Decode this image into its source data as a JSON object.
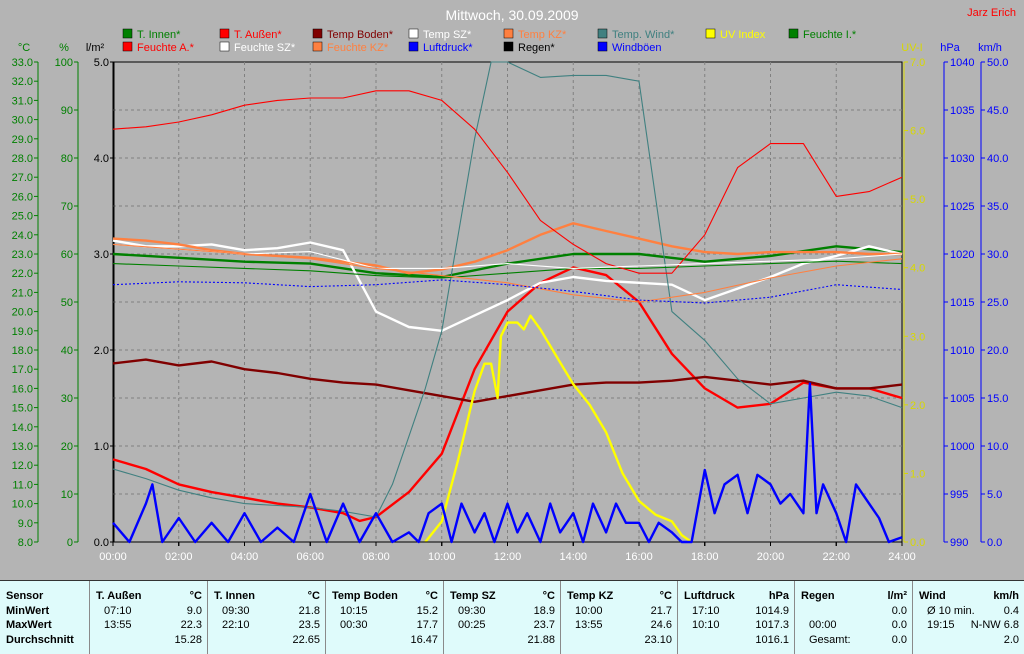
{
  "chart_data": {
    "type": "line",
    "title": "Mittwoch, 30.09.2009",
    "author": "Jarz Erich",
    "x_ticks": [
      "00:00",
      "02:00",
      "04:00",
      "06:00",
      "08:00",
      "10:00",
      "12:00",
      "14:00",
      "16:00",
      "18:00",
      "20:00",
      "22:00",
      "24:00"
    ],
    "grid": true,
    "axes": {
      "temp_c": {
        "unit": "°C",
        "range": [
          8.0,
          33.0
        ],
        "ticks": [
          "33.0",
          "32.0",
          "31.0",
          "30.0",
          "29.0",
          "28.0",
          "27.0",
          "26.0",
          "25.0",
          "24.0",
          "23.0",
          "22.0",
          "21.0",
          "20.0",
          "19.0",
          "18.0",
          "17.0",
          "16.0",
          "15.0",
          "14.0",
          "13.0",
          "12.0",
          "11.0",
          "10.0",
          "9.0",
          "8.0"
        ]
      },
      "humidity_pct": {
        "unit": "%",
        "range": [
          0,
          100
        ],
        "ticks": [
          "100",
          "90",
          "80",
          "70",
          "60",
          "50",
          "40",
          "30",
          "20",
          "10",
          "0"
        ]
      },
      "rain_lm2": {
        "unit": "l/m²",
        "range": [
          0.0,
          5.0
        ],
        "ticks": [
          "5.0",
          "4.0",
          "3.0",
          "2.0",
          "1.0",
          "0.0"
        ]
      },
      "uv_index": {
        "unit": "UV-I",
        "range": [
          0.0,
          7.0
        ],
        "ticks": [
          "7.0",
          "6.0",
          "5.0",
          "4.0",
          "3.0",
          "2.0",
          "1.0",
          "0.0"
        ]
      },
      "pressure_hpa": {
        "unit": "hPa",
        "range": [
          990,
          1040
        ],
        "ticks": [
          "1040",
          "1035",
          "1030",
          "1025",
          "1020",
          "1015",
          "1010",
          "1005",
          "1000",
          "995",
          "990"
        ]
      },
      "wind_kmh": {
        "unit": "km/h",
        "range": [
          0.0,
          50.0
        ],
        "ticks": [
          "50.0",
          "45.0",
          "40.0",
          "35.0",
          "30.0",
          "25.0",
          "20.0",
          "15.0",
          "10.0",
          "5.0",
          "0.0"
        ]
      }
    },
    "legend": [
      {
        "name": "T. Innen*",
        "color": "#008000"
      },
      {
        "name": "T. Außen*",
        "color": "#ff0000"
      },
      {
        "name": "Temp Boden*",
        "color": "#800000"
      },
      {
        "name": "Temp SZ*",
        "color": "#ffffff"
      },
      {
        "name": "Temp KZ*",
        "color": "#ff8040"
      },
      {
        "name": "Temp. Wind*",
        "color": "#408080"
      },
      {
        "name": "UV Index",
        "color": "#ffff00"
      },
      {
        "name": "Feuchte I.*",
        "color": "#008000"
      },
      {
        "name": "Feuchte A.*",
        "color": "#ff0000"
      },
      {
        "name": "Feuchte SZ*",
        "color": "#ffffff"
      },
      {
        "name": "Feuchte KZ*",
        "color": "#ff8040"
      },
      {
        "name": "Luftdruck*",
        "color": "#0000ff"
      },
      {
        "name": "Regen*",
        "color": "#000000"
      },
      {
        "name": "Windböen",
        "color": "#0000ff"
      }
    ],
    "series": [
      {
        "legend_index": 0,
        "axis": "temp_c",
        "style": "thick",
        "x": [
          0,
          2,
          4,
          6,
          8,
          10,
          12,
          14,
          16,
          18,
          20,
          22,
          24
        ],
        "y": [
          23.0,
          22.8,
          22.6,
          22.5,
          22.0,
          21.8,
          22.5,
          23.0,
          23.0,
          22.6,
          22.9,
          23.4,
          23.1
        ]
      },
      {
        "legend_index": 1,
        "axis": "temp_c",
        "style": "thick",
        "x": [
          0,
          1,
          2,
          3,
          4,
          5,
          6,
          7,
          7.5,
          8,
          9,
          10,
          11,
          12,
          13,
          14,
          15,
          16,
          17,
          18,
          19,
          20,
          21,
          22,
          23,
          24
        ],
        "y": [
          12.3,
          11.8,
          11.0,
          10.6,
          10.3,
          10.0,
          9.8,
          9.5,
          9.1,
          9.3,
          10.6,
          12.6,
          17.0,
          20.0,
          21.5,
          22.3,
          21.9,
          20.5,
          17.8,
          16.0,
          15.0,
          15.2,
          16.3,
          16.0,
          16.0,
          15.5
        ]
      },
      {
        "legend_index": 2,
        "axis": "temp_c",
        "style": "thick",
        "x": [
          0,
          1,
          2,
          3,
          4,
          5,
          6,
          7,
          8,
          9,
          10,
          11,
          12,
          13,
          14,
          15,
          16,
          17,
          18,
          19,
          20,
          21,
          22,
          23,
          24
        ],
        "y": [
          17.3,
          17.5,
          17.2,
          17.4,
          17.0,
          16.8,
          16.5,
          16.3,
          16.2,
          15.9,
          15.6,
          15.3,
          15.6,
          15.9,
          16.2,
          16.3,
          16.3,
          16.4,
          16.6,
          16.4,
          16.2,
          16.4,
          16.0,
          16.0,
          16.2
        ]
      },
      {
        "legend_index": 3,
        "axis": "temp_c",
        "style": "thick",
        "x": [
          0,
          1,
          2,
          3,
          4,
          5,
          6,
          7,
          8,
          9,
          10,
          11,
          12,
          13,
          14,
          15,
          16,
          17,
          18,
          19,
          20,
          21,
          22,
          23,
          24
        ],
        "y": [
          23.7,
          23.4,
          23.4,
          23.5,
          23.2,
          23.3,
          23.6,
          23.2,
          20.0,
          19.2,
          19.0,
          19.8,
          20.6,
          21.5,
          21.8,
          21.6,
          21.5,
          21.4,
          20.6,
          21.2,
          21.8,
          22.5,
          22.9,
          23.4,
          23.0
        ]
      },
      {
        "legend_index": 4,
        "axis": "temp_c",
        "style": "thick",
        "x": [
          0,
          1,
          2,
          3,
          4,
          5,
          6,
          7,
          8,
          9,
          10,
          11,
          12,
          13,
          14,
          15,
          16,
          17,
          18,
          19,
          20,
          21,
          22,
          23,
          24
        ],
        "y": [
          23.8,
          23.7,
          23.5,
          23.2,
          23.0,
          22.9,
          22.8,
          22.6,
          22.4,
          22.0,
          22.2,
          22.6,
          23.2,
          24.0,
          24.6,
          24.2,
          23.8,
          23.4,
          23.1,
          23.0,
          23.1,
          23.1,
          23.1,
          23.0,
          23.0
        ]
      },
      {
        "legend_index": 5,
        "axis": "temp_c",
        "style": "thin",
        "x": [
          0,
          1,
          2,
          3,
          4,
          5,
          6,
          7,
          8,
          8.5,
          9,
          9.5,
          10,
          10.5,
          11,
          11.5,
          12,
          13,
          14,
          15,
          16,
          16.5,
          17,
          18,
          19,
          20,
          21,
          22,
          23,
          24
        ],
        "y": [
          11.8,
          11.3,
          10.7,
          10.3,
          10.0,
          9.9,
          9.8,
          9.6,
          9.3,
          11.0,
          13.5,
          16.0,
          19.0,
          24.0,
          29.0,
          33.0,
          33.0,
          32.2,
          32.3,
          32.3,
          32.0,
          26.0,
          20.0,
          18.5,
          16.5,
          15.2,
          15.5,
          15.8,
          15.6,
          15.0
        ]
      },
      {
        "legend_index": 6,
        "axis": "uv_index",
        "style": "thick",
        "x": [
          9.5,
          10,
          10.5,
          11,
          11.3,
          11.5,
          11.7,
          11.8,
          12,
          12.3,
          12.5,
          12.7,
          13,
          13.5,
          14,
          14.5,
          15,
          15.5,
          16,
          16.5,
          17,
          17.3,
          17.6
        ],
        "y": [
          0.0,
          0.3,
          1.2,
          2.2,
          2.6,
          2.6,
          2.1,
          3.0,
          3.2,
          3.2,
          3.1,
          3.3,
          3.1,
          2.7,
          2.3,
          2.0,
          1.6,
          1.0,
          0.6,
          0.4,
          0.3,
          0.1,
          0.0
        ]
      },
      {
        "legend_index": 7,
        "axis": "humidity_pct",
        "style": "thin",
        "x": [
          0,
          2,
          4,
          6,
          8,
          10,
          12,
          14,
          16,
          18,
          20,
          22,
          24
        ],
        "y": [
          58,
          57.5,
          57,
          56.5,
          55.5,
          55,
          56,
          57,
          57,
          57.5,
          58,
          58.5,
          58
        ]
      },
      {
        "legend_index": 8,
        "axis": "humidity_pct",
        "style": "thin",
        "x": [
          0,
          1,
          2,
          3,
          4,
          5,
          6,
          7,
          8,
          9,
          10,
          11,
          12,
          13,
          14,
          15,
          16,
          17,
          18,
          19,
          20,
          21,
          22,
          23,
          24
        ],
        "y": [
          86,
          86.5,
          87.5,
          89,
          91,
          92,
          92.5,
          92.5,
          94,
          94,
          92,
          86,
          77,
          67,
          62,
          58,
          56,
          56,
          64,
          78,
          83,
          83,
          72,
          73,
          76
        ]
      },
      {
        "legend_index": 9,
        "axis": "humidity_pct",
        "style": "thin",
        "x": [
          0,
          2,
          4,
          6,
          8,
          10,
          12,
          14,
          16,
          18,
          20,
          22,
          24
        ],
        "y": [
          62,
          61,
          60,
          60.5,
          57,
          57,
          58,
          57,
          57.5,
          58,
          58.5,
          59,
          60
        ]
      },
      {
        "legend_index": 10,
        "axis": "humidity_pct",
        "style": "thin",
        "x": [
          0,
          2,
          4,
          6,
          8,
          10,
          12,
          14,
          16,
          18,
          20,
          22,
          24
        ],
        "y": [
          62,
          61,
          60,
          59,
          57,
          55.5,
          54,
          51.5,
          50,
          52,
          55,
          57.5,
          59
        ]
      },
      {
        "legend_index": 11,
        "axis": "pressure_hpa",
        "style": "dotted",
        "x": [
          0,
          2,
          4,
          6,
          8,
          10,
          12,
          14,
          16,
          18,
          20,
          22,
          24
        ],
        "y": [
          1016.8,
          1017.1,
          1017.0,
          1016.6,
          1016.8,
          1017.3,
          1016.8,
          1016.1,
          1015.2,
          1014.9,
          1015.5,
          1016.8,
          1016.3
        ]
      },
      {
        "legend_index": 12,
        "axis": "rain_lm2",
        "style": "thin",
        "x": [
          0,
          24
        ],
        "y": [
          0,
          0
        ]
      },
      {
        "legend_index": 13,
        "axis": "wind_kmh",
        "style": "thick",
        "x": [
          0,
          0.5,
          1,
          1.2,
          1.5,
          2,
          2.5,
          3,
          3.5,
          4,
          4.5,
          5,
          5.5,
          6,
          6.5,
          7,
          7.5,
          8,
          8.5,
          9,
          9.3,
          9.6,
          10,
          10.3,
          10.6,
          11,
          11.3,
          11.6,
          12,
          12.3,
          12.6,
          13,
          13.3,
          13.6,
          14,
          14.3,
          14.6,
          15,
          15.3,
          15.6,
          16,
          16.3,
          16.6,
          17,
          17.3,
          17.6,
          18,
          18.3,
          18.6,
          19,
          19.3,
          19.6,
          20,
          20.3,
          20.6,
          21,
          21.2,
          21.4,
          21.6,
          22,
          22.3,
          22.6,
          23,
          23.3,
          23.6,
          24
        ],
        "y": [
          2,
          0,
          4,
          6,
          0,
          2.5,
          0,
          2,
          0,
          3,
          0,
          1.5,
          0,
          5,
          0,
          4,
          0,
          3,
          0,
          1,
          0,
          3,
          4,
          0,
          4,
          1,
          3,
          0,
          4,
          1,
          3,
          0,
          4,
          1,
          3,
          0,
          4,
          1,
          4,
          2,
          2,
          0,
          2,
          1,
          0,
          0,
          7.5,
          3,
          6,
          7,
          3,
          7,
          6,
          4,
          5,
          3,
          16.5,
          3,
          6,
          3,
          0,
          6,
          4,
          2.5,
          0,
          0.5
        ]
      }
    ]
  },
  "table": {
    "headers": [
      {
        "name": "Sensor",
        "unit": ""
      },
      {
        "name": "T. Außen",
        "unit": "°C"
      },
      {
        "name": "T. Innen",
        "unit": "°C"
      },
      {
        "name": "Temp Boden",
        "unit": "°C"
      },
      {
        "name": "Temp SZ",
        "unit": "°C"
      },
      {
        "name": "Temp KZ",
        "unit": "°C"
      },
      {
        "name": "Luftdruck",
        "unit": "hPa"
      },
      {
        "name": "Regen",
        "unit": "l/m²"
      },
      {
        "name": "Wind",
        "unit": "km/h"
      }
    ],
    "row_labels": [
      "MinWert",
      "MaxWert",
      "Durchschnitt"
    ],
    "cells": [
      [
        [
          "07:10",
          "9.0"
        ],
        [
          "13:55",
          "22.3"
        ],
        [
          "",
          "15.28"
        ]
      ],
      [
        [
          "09:30",
          "21.8"
        ],
        [
          "22:10",
          "23.5"
        ],
        [
          "",
          "22.65"
        ]
      ],
      [
        [
          "10:15",
          "15.2"
        ],
        [
          "00:30",
          "17.7"
        ],
        [
          "",
          "16.47"
        ]
      ],
      [
        [
          "09:30",
          "18.9"
        ],
        [
          "00:25",
          "23.7"
        ],
        [
          "",
          "21.88"
        ]
      ],
      [
        [
          "10:00",
          "21.7"
        ],
        [
          "13:55",
          "24.6"
        ],
        [
          "",
          "23.10"
        ]
      ],
      [
        [
          "17:10",
          "1014.9"
        ],
        [
          "10:10",
          "1017.3"
        ],
        [
          "",
          "1016.1"
        ]
      ],
      [
        [
          "",
          "0.0"
        ],
        [
          "00:00",
          "0.0"
        ],
        [
          "Gesamt:",
          "0.0"
        ]
      ],
      [
        [
          "Ø 10 min.",
          "0.4"
        ],
        [
          "19:15",
          "N-NW 6.8"
        ],
        [
          "",
          "2.0"
        ]
      ]
    ]
  }
}
